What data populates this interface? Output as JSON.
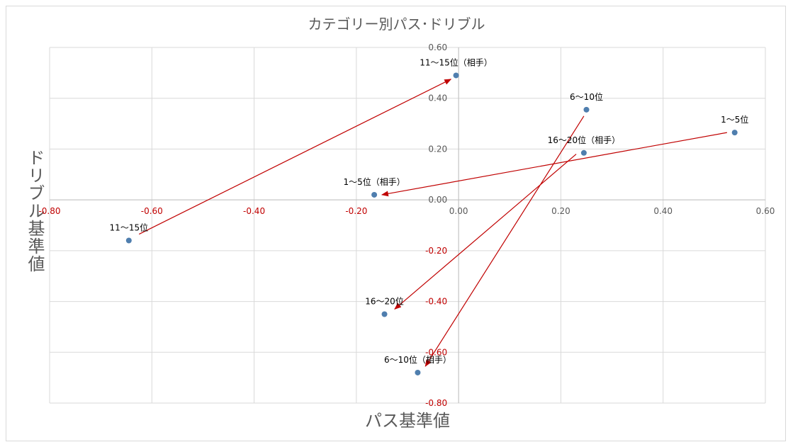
{
  "chart_data": {
    "type": "scatter",
    "title": "カテゴリー別パス･ドリブル",
    "xlabel": "パス基準値",
    "ylabel": "ドリブル基準値",
    "xlim": [
      -0.8,
      0.6
    ],
    "ylim": [
      -0.8,
      0.6
    ],
    "x_ticks": [
      "-0.80",
      "-0.60",
      "-0.40",
      "-0.20",
      "0.00",
      "0.20",
      "0.40",
      "0.60"
    ],
    "y_ticks": [
      "0.60",
      "0.40",
      "0.20",
      "0.00",
      "-0.20",
      "-0.40",
      "-0.60",
      "-0.80"
    ],
    "grid": true,
    "point_color": "#4f7eae",
    "arrow_color": "#c00000",
    "negative_tick_color": "#c00000",
    "points": [
      {
        "label": "1～5位",
        "x": 0.54,
        "y": 0.265
      },
      {
        "label": "6～10位",
        "x": 0.25,
        "y": 0.355
      },
      {
        "label": "11～15位",
        "x": -0.645,
        "y": -0.16
      },
      {
        "label": "16～20位",
        "x": -0.145,
        "y": -0.45
      },
      {
        "label": "1～5位（相手）",
        "x": -0.165,
        "y": 0.02
      },
      {
        "label": "6～10位（相手）",
        "x": -0.08,
        "y": -0.68
      },
      {
        "label": "11～15位（相手）",
        "x": -0.005,
        "y": 0.49
      },
      {
        "label": "16～20位（相手）",
        "x": 0.245,
        "y": 0.185
      }
    ],
    "arrows": [
      {
        "from": [
          -0.625,
          -0.135
        ],
        "to": [
          -0.015,
          0.475
        ]
      },
      {
        "from": [
          0.525,
          0.265
        ],
        "to": [
          -0.15,
          0.02
        ]
      },
      {
        "from": [
          0.245,
          0.33
        ],
        "to": [
          -0.065,
          -0.655
        ]
      },
      {
        "from": [
          0.23,
          0.18
        ],
        "to": [
          -0.125,
          -0.43
        ]
      }
    ]
  }
}
